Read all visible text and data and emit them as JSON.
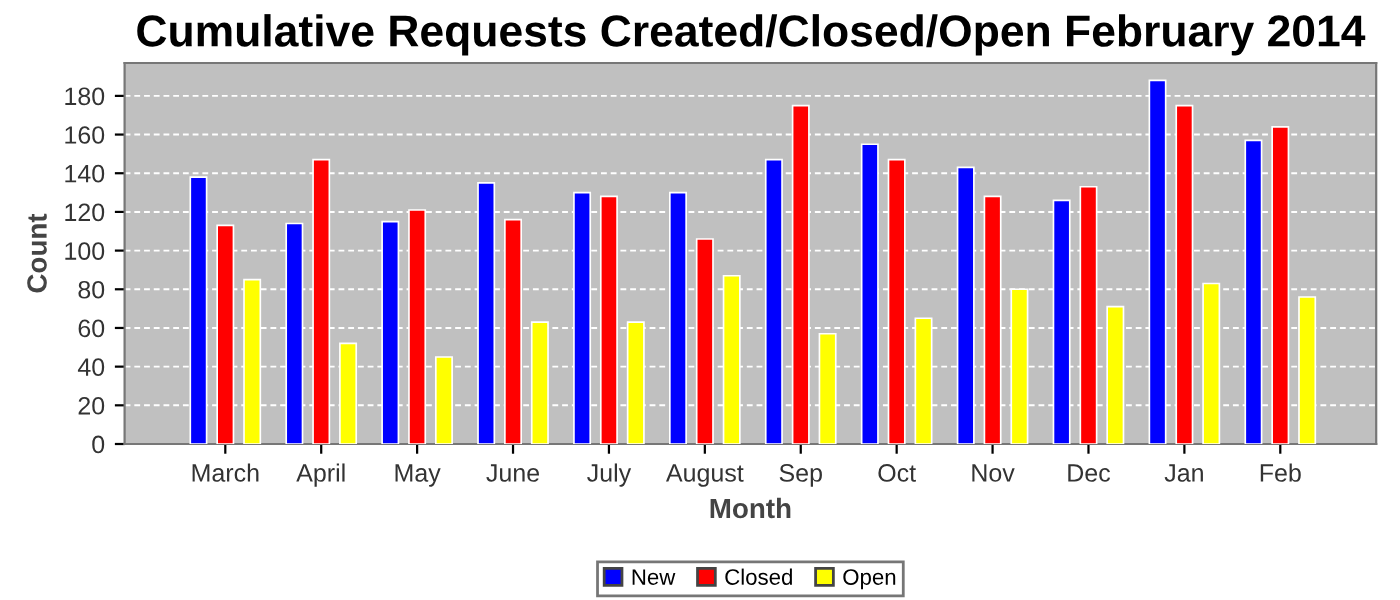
{
  "chart_data": {
    "type": "bar",
    "title": "Cumulative Requests Created/Closed/Open February 2014",
    "xlabel": "Month",
    "ylabel": "Count",
    "categories": [
      "March",
      "April",
      "May",
      "June",
      "July",
      "August",
      "Sep",
      "Oct",
      "Nov",
      "Dec",
      "Jan",
      "Feb"
    ],
    "series": [
      {
        "name": "New",
        "color": "#0000ff",
        "values": [
          138,
          114,
          115,
          135,
          130,
          130,
          147,
          155,
          143,
          126,
          188,
          157
        ]
      },
      {
        "name": "Closed",
        "color": "#ff0000",
        "values": [
          113,
          147,
          121,
          116,
          128,
          106,
          175,
          147,
          128,
          133,
          175,
          164
        ]
      },
      {
        "name": "Open",
        "color": "#ffff00",
        "values": [
          85,
          52,
          45,
          63,
          63,
          87,
          57,
          65,
          80,
          71,
          83,
          76
        ]
      }
    ],
    "ylim": [
      0,
      197
    ],
    "yticks": [
      0,
      20,
      40,
      60,
      80,
      100,
      120,
      140,
      160,
      180
    ],
    "grid": "y",
    "legend": "bottom"
  }
}
